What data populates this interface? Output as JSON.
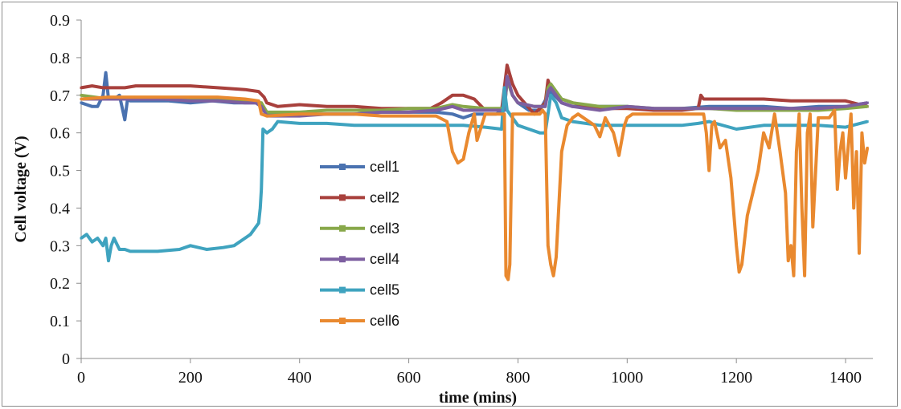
{
  "chart_data": {
    "type": "line",
    "xlabel": "time (mins)",
    "ylabel": "Cell  voltage (V)",
    "xlim": [
      0,
      1450
    ],
    "ylim": [
      0,
      0.9
    ],
    "xticks": [
      0,
      200,
      400,
      600,
      800,
      1000,
      1200,
      1400
    ],
    "yticks": [
      0,
      0.1,
      0.2,
      0.3,
      0.4,
      0.5,
      0.6,
      0.7,
      0.8,
      0.9
    ],
    "grid": false,
    "legend_position": "center-left",
    "series": [
      {
        "name": "cell1",
        "color": "#4a72b0",
        "x": [
          0,
          10,
          20,
          30,
          40,
          45,
          50,
          60,
          70,
          80,
          85,
          90,
          120,
          160,
          200,
          240,
          280,
          320,
          330,
          340,
          380,
          420,
          460,
          500,
          550,
          600,
          650,
          680,
          700,
          720,
          760,
          775,
          780,
          790,
          800,
          820,
          840,
          855,
          860,
          880,
          900,
          950,
          1000,
          1050,
          1100,
          1150,
          1200,
          1250,
          1300,
          1350,
          1400,
          1440
        ],
        "y": [
          0.68,
          0.675,
          0.67,
          0.67,
          0.7,
          0.76,
          0.69,
          0.69,
          0.7,
          0.635,
          0.69,
          0.685,
          0.685,
          0.685,
          0.68,
          0.685,
          0.68,
          0.68,
          0.67,
          0.65,
          0.65,
          0.65,
          0.65,
          0.65,
          0.655,
          0.655,
          0.655,
          0.65,
          0.64,
          0.65,
          0.65,
          0.66,
          0.74,
          0.7,
          0.68,
          0.66,
          0.66,
          0.7,
          0.71,
          0.68,
          0.67,
          0.67,
          0.67,
          0.66,
          0.665,
          0.67,
          0.67,
          0.67,
          0.665,
          0.67,
          0.67,
          0.68
        ]
      },
      {
        "name": "cell2",
        "color": "#a8403c",
        "x": [
          0,
          20,
          40,
          60,
          80,
          100,
          150,
          200,
          250,
          300,
          325,
          335,
          340,
          360,
          400,
          450,
          500,
          550,
          600,
          640,
          660,
          680,
          700,
          720,
          740,
          770,
          780,
          790,
          800,
          830,
          850,
          855,
          860,
          880,
          900,
          950,
          1000,
          1050,
          1100,
          1130,
          1135,
          1140,
          1200,
          1250,
          1300,
          1350,
          1400,
          1440
        ],
        "y": [
          0.72,
          0.725,
          0.72,
          0.72,
          0.72,
          0.725,
          0.725,
          0.725,
          0.72,
          0.715,
          0.71,
          0.695,
          0.68,
          0.67,
          0.675,
          0.67,
          0.67,
          0.665,
          0.665,
          0.665,
          0.68,
          0.7,
          0.7,
          0.69,
          0.66,
          0.66,
          0.78,
          0.73,
          0.7,
          0.65,
          0.68,
          0.74,
          0.72,
          0.69,
          0.68,
          0.665,
          0.665,
          0.66,
          0.66,
          0.665,
          0.7,
          0.69,
          0.69,
          0.69,
          0.685,
          0.685,
          0.685,
          0.67
        ]
      },
      {
        "name": "cell3",
        "color": "#88a84a",
        "x": [
          0,
          50,
          100,
          150,
          200,
          250,
          300,
          330,
          340,
          400,
          450,
          500,
          550,
          600,
          650,
          680,
          700,
          740,
          775,
          780,
          790,
          800,
          830,
          850,
          855,
          860,
          880,
          900,
          950,
          1000,
          1050,
          1100,
          1150,
          1200,
          1250,
          1300,
          1350,
          1400,
          1440
        ],
        "y": [
          0.7,
          0.69,
          0.69,
          0.69,
          0.69,
          0.69,
          0.685,
          0.68,
          0.655,
          0.655,
          0.66,
          0.66,
          0.66,
          0.665,
          0.665,
          0.675,
          0.67,
          0.665,
          0.665,
          0.74,
          0.7,
          0.68,
          0.67,
          0.67,
          0.72,
          0.73,
          0.69,
          0.68,
          0.67,
          0.67,
          0.665,
          0.665,
          0.665,
          0.66,
          0.66,
          0.66,
          0.66,
          0.665,
          0.67
        ]
      },
      {
        "name": "cell4",
        "color": "#7d5fa0",
        "x": [
          0,
          50,
          100,
          150,
          200,
          250,
          300,
          320,
          330,
          340,
          400,
          450,
          500,
          550,
          600,
          650,
          680,
          700,
          740,
          775,
          780,
          790,
          800,
          830,
          850,
          855,
          860,
          880,
          900,
          950,
          1000,
          1050,
          1100,
          1150,
          1200,
          1250,
          1300,
          1350,
          1400,
          1440
        ],
        "y": [
          0.69,
          0.69,
          0.69,
          0.69,
          0.685,
          0.685,
          0.68,
          0.68,
          0.67,
          0.645,
          0.645,
          0.65,
          0.65,
          0.655,
          0.655,
          0.66,
          0.67,
          0.66,
          0.66,
          0.66,
          0.75,
          0.7,
          0.68,
          0.67,
          0.67,
          0.71,
          0.72,
          0.68,
          0.67,
          0.66,
          0.67,
          0.665,
          0.665,
          0.665,
          0.665,
          0.665,
          0.665,
          0.665,
          0.67,
          0.68
        ]
      },
      {
        "name": "cell5",
        "color": "#3fa3bf",
        "x": [
          0,
          10,
          20,
          30,
          40,
          45,
          50,
          55,
          60,
          70,
          80,
          90,
          100,
          140,
          180,
          200,
          230,
          260,
          280,
          300,
          310,
          320,
          325,
          328,
          330,
          333,
          340,
          350,
          360,
          400,
          450,
          500,
          550,
          600,
          650,
          700,
          740,
          770,
          775,
          780,
          790,
          800,
          820,
          840,
          850,
          860,
          870,
          880,
          900,
          950,
          1000,
          1050,
          1100,
          1130,
          1150,
          1200,
          1250,
          1300,
          1350,
          1400,
          1440
        ],
        "y": [
          0.32,
          0.33,
          0.31,
          0.32,
          0.3,
          0.32,
          0.26,
          0.3,
          0.32,
          0.29,
          0.29,
          0.285,
          0.285,
          0.285,
          0.29,
          0.3,
          0.29,
          0.295,
          0.3,
          0.32,
          0.33,
          0.35,
          0.36,
          0.4,
          0.45,
          0.61,
          0.6,
          0.61,
          0.63,
          0.625,
          0.625,
          0.62,
          0.62,
          0.62,
          0.62,
          0.62,
          0.615,
          0.61,
          0.72,
          0.66,
          0.64,
          0.62,
          0.61,
          0.6,
          0.6,
          0.7,
          0.68,
          0.64,
          0.63,
          0.62,
          0.62,
          0.62,
          0.62,
          0.625,
          0.63,
          0.61,
          0.62,
          0.62,
          0.62,
          0.615,
          0.63
        ]
      },
      {
        "name": "cell6",
        "color": "#e9892f",
        "x": [
          0,
          50,
          100,
          150,
          200,
          250,
          300,
          325,
          330,
          340,
          400,
          450,
          500,
          550,
          600,
          650,
          670,
          680,
          690,
          700,
          710,
          720,
          725,
          740,
          760,
          770,
          775,
          778,
          782,
          785,
          790,
          800,
          820,
          840,
          845,
          850,
          855,
          860,
          865,
          870,
          880,
          890,
          900,
          910,
          940,
          950,
          960,
          975,
          985,
          995,
          1000,
          1010,
          1050,
          1100,
          1140,
          1145,
          1150,
          1155,
          1160,
          1170,
          1180,
          1190,
          1200,
          1205,
          1210,
          1220,
          1230,
          1240,
          1250,
          1260,
          1270,
          1280,
          1290,
          1295,
          1300,
          1305,
          1310,
          1315,
          1320,
          1325,
          1330,
          1335,
          1340,
          1350,
          1370,
          1380,
          1385,
          1390,
          1395,
          1400,
          1410,
          1415,
          1420,
          1425,
          1430,
          1435,
          1440
        ],
        "y": [
          0.69,
          0.695,
          0.695,
          0.695,
          0.695,
          0.695,
          0.69,
          0.685,
          0.65,
          0.645,
          0.65,
          0.65,
          0.65,
          0.645,
          0.645,
          0.645,
          0.63,
          0.55,
          0.52,
          0.53,
          0.6,
          0.65,
          0.58,
          0.65,
          0.65,
          0.65,
          0.65,
          0.22,
          0.21,
          0.25,
          0.65,
          0.65,
          0.65,
          0.65,
          0.66,
          0.65,
          0.3,
          0.25,
          0.22,
          0.27,
          0.55,
          0.62,
          0.64,
          0.65,
          0.62,
          0.59,
          0.64,
          0.6,
          0.54,
          0.62,
          0.64,
          0.65,
          0.65,
          0.65,
          0.65,
          0.6,
          0.5,
          0.62,
          0.63,
          0.56,
          0.58,
          0.48,
          0.3,
          0.23,
          0.25,
          0.38,
          0.44,
          0.5,
          0.6,
          0.56,
          0.65,
          0.55,
          0.44,
          0.26,
          0.3,
          0.22,
          0.55,
          0.65,
          0.4,
          0.22,
          0.6,
          0.65,
          0.35,
          0.64,
          0.64,
          0.66,
          0.45,
          0.55,
          0.6,
          0.48,
          0.65,
          0.4,
          0.55,
          0.28,
          0.6,
          0.52,
          0.56
        ]
      }
    ]
  }
}
